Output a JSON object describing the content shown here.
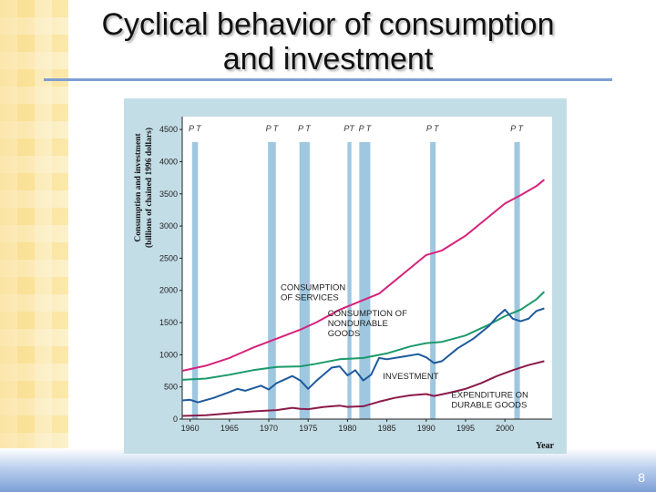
{
  "slide": {
    "title_line1": "Cyclical behavior of consumption",
    "title_line2": "and investment",
    "page_number": "8"
  },
  "colors": {
    "services": "#d6237b",
    "nondurable": "#1b9a6a",
    "investment": "#1e5a9c",
    "durable": "#8b1a4a",
    "recession_band": "#9fc7e0",
    "plot_bg": "#ffffff",
    "frame_bg": "#c3dde6"
  },
  "chart_data": {
    "type": "line",
    "title": "",
    "ylabel_line1": "Consumption and investment",
    "ylabel_line2": "(billions of chained 1996 dollars)",
    "xlabel": "Year",
    "xlim": [
      1959,
      2006
    ],
    "ylim": [
      0,
      4700
    ],
    "xticks": [
      1960,
      1965,
      1970,
      1975,
      1980,
      1985,
      1990,
      1995,
      2000
    ],
    "yticks": [
      0,
      500,
      1000,
      1500,
      2000,
      2500,
      3000,
      3500,
      4000,
      4500
    ],
    "recessions": [
      {
        "start": 1960.25,
        "end": 1961.0
      },
      {
        "start": 1969.9,
        "end": 1970.9
      },
      {
        "start": 1973.9,
        "end": 1975.2
      },
      {
        "start": 1980.0,
        "end": 1980.5
      },
      {
        "start": 1981.5,
        "end": 1982.9
      },
      {
        "start": 1990.5,
        "end": 1991.2
      },
      {
        "start": 2001.2,
        "end": 2001.9
      }
    ],
    "recession_labels": [
      {
        "x": 1960.6,
        "text": "P T"
      },
      {
        "x": 1970.4,
        "text": "P T"
      },
      {
        "x": 1974.5,
        "text": "P T"
      },
      {
        "x": 1980.2,
        "text": "PT"
      },
      {
        "x": 1982.2,
        "text": "P  T"
      },
      {
        "x": 1990.8,
        "text": "P T"
      },
      {
        "x": 2001.5,
        "text": "P T"
      }
    ],
    "series": [
      {
        "name": "CONSUMPTION OF SERVICES",
        "label_lines": [
          "CONSUMPTION",
          "OF SERVICES"
        ],
        "label_x": 1971.5,
        "label_y": 2000,
        "x": [
          1959,
          1962,
          1965,
          1968,
          1971,
          1974,
          1976,
          1979,
          1982,
          1984,
          1987,
          1990,
          1992,
          1995,
          1998,
          2000,
          2002,
          2004,
          2005
        ],
        "values": [
          750,
          830,
          950,
          1110,
          1250,
          1390,
          1500,
          1700,
          1850,
          1950,
          2250,
          2550,
          2620,
          2850,
          3150,
          3350,
          3480,
          3620,
          3720
        ]
      },
      {
        "name": "CONSUMPTION OF NONDURABLE GOODS",
        "label_lines": [
          "CONSUMPTION  OF",
          "NONDURABLE",
          "GOODS"
        ],
        "label_x": 1977.5,
        "label_y": 1600,
        "x": [
          1959,
          1962,
          1965,
          1968,
          1971,
          1974,
          1976,
          1979,
          1982,
          1985,
          1988,
          1990,
          1992,
          1995,
          1998,
          2000,
          2002,
          2004,
          2005
        ],
        "values": [
          610,
          630,
          690,
          760,
          810,
          820,
          860,
          930,
          950,
          1020,
          1130,
          1180,
          1200,
          1300,
          1470,
          1600,
          1700,
          1860,
          1980
        ]
      },
      {
        "name": "INVESTMENT",
        "label_lines": [
          "INVESTMENT"
        ],
        "label_x": 1984.5,
        "label_y": 620,
        "x": [
          1959,
          1960,
          1961,
          1963,
          1965,
          1966,
          1967,
          1969,
          1970,
          1971,
          1973,
          1974,
          1975,
          1976,
          1978,
          1979,
          1980,
          1981,
          1982,
          1983,
          1984,
          1985,
          1987,
          1989,
          1990,
          1991,
          1992,
          1994,
          1996,
          1998,
          1999,
          2000,
          2001,
          2002,
          2003,
          2004,
          2005
        ],
        "values": [
          290,
          300,
          260,
          330,
          420,
          470,
          440,
          520,
          460,
          560,
          670,
          600,
          470,
          590,
          800,
          820,
          680,
          760,
          600,
          690,
          950,
          930,
          970,
          1010,
          960,
          870,
          900,
          1100,
          1250,
          1450,
          1590,
          1700,
          1560,
          1520,
          1560,
          1680,
          1720
        ]
      },
      {
        "name": "EXPENDITURE ON DURABLE GOODS",
        "label_lines": [
          "EXPENDITURE  ON",
          "DURABLE  GOODS"
        ],
        "label_x": 1993.2,
        "label_y": 330,
        "x": [
          1959,
          1962,
          1965,
          1968,
          1971,
          1973,
          1974,
          1975,
          1977,
          1979,
          1980,
          1982,
          1984,
          1986,
          1988,
          1990,
          1991,
          1993,
          1995,
          1997,
          1999,
          2001,
          2003,
          2005
        ],
        "values": [
          50,
          60,
          90,
          120,
          140,
          175,
          160,
          155,
          190,
          210,
          190,
          200,
          270,
          330,
          370,
          390,
          360,
          410,
          470,
          560,
          670,
          760,
          840,
          900
        ]
      }
    ]
  }
}
